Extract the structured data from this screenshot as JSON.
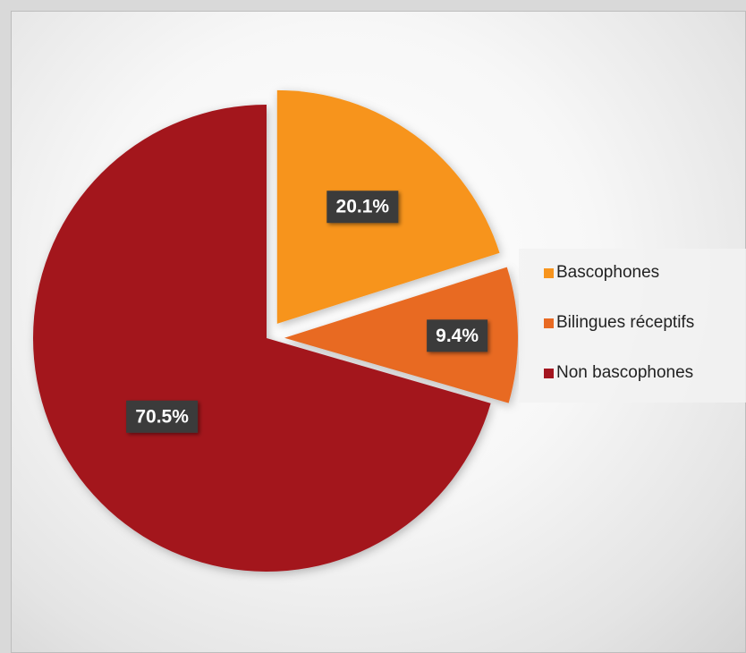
{
  "chart_data": {
    "type": "pie",
    "title": "",
    "slices": [
      {
        "label": "Bascophones",
        "value": 20.1,
        "display": "20.1%",
        "color": "#f7941d",
        "exploded": true
      },
      {
        "label": "Bilingues réceptifs",
        "value": 9.4,
        "display": "9.4%",
        "color": "#e86a23",
        "exploded": true
      },
      {
        "label": "Non bascophones",
        "value": 70.5,
        "display": "70.5%",
        "color": "#a3151f",
        "exploded": false
      }
    ],
    "legend_position": "right"
  }
}
